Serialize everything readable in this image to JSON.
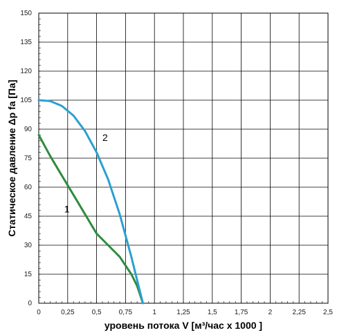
{
  "chart_data": {
    "type": "line",
    "xlabel": "уровень потока  V [м³/час x 1000 ]",
    "ylabel": "Статическое давление  Δp fa [Па]",
    "xlim": [
      0,
      2.5
    ],
    "ylim": [
      0,
      150
    ],
    "x_ticks": [
      "0",
      "0,25",
      "0,5",
      "0,75",
      "1",
      "1,25",
      "1,5",
      "1,75",
      "2",
      "2,25",
      "2,5"
    ],
    "y_ticks": [
      "0",
      "15",
      "30",
      "45",
      "60",
      "75",
      "90",
      "105",
      "120",
      "135",
      "150"
    ],
    "x_tick_values": [
      0,
      0.25,
      0.5,
      0.75,
      1,
      1.25,
      1.5,
      1.75,
      2,
      2.25,
      2.5
    ],
    "y_tick_values": [
      0,
      15,
      30,
      45,
      60,
      75,
      90,
      105,
      120,
      135,
      150
    ],
    "grid": true,
    "series": [
      {
        "name": "1",
        "color": "#2e8b3e",
        "x": [
          0,
          0.1,
          0.2,
          0.3,
          0.4,
          0.5,
          0.6,
          0.7,
          0.8,
          0.85,
          0.9
        ],
        "y": [
          87,
          76,
          66,
          56,
          46,
          36,
          30,
          24,
          15,
          9,
          0
        ]
      },
      {
        "name": "2",
        "color": "#2a9fd0",
        "x": [
          0,
          0.1,
          0.2,
          0.3,
          0.4,
          0.5,
          0.6,
          0.7,
          0.8,
          0.85,
          0.9
        ],
        "y": [
          105,
          104.5,
          102,
          97,
          89,
          78,
          64,
          46,
          24,
          12,
          0
        ]
      }
    ]
  }
}
